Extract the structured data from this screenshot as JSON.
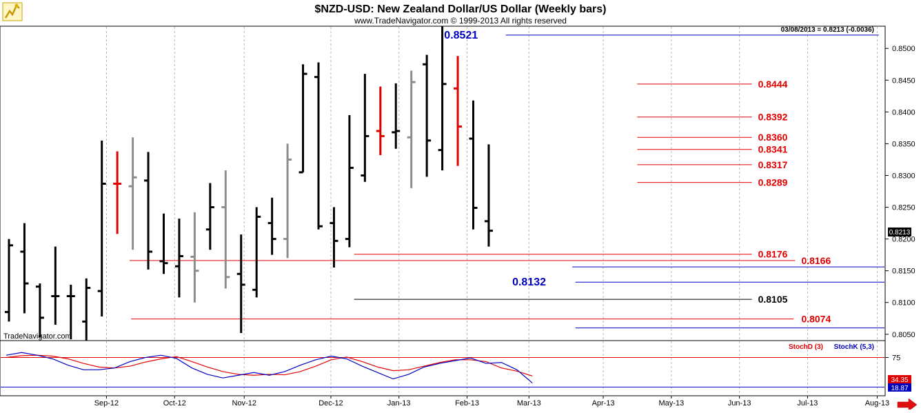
{
  "header": {
    "title": "$NZD-USD:  New Zealand Dollar/US Dollar  (Weekly bars)",
    "copyright": "www.TradeNavigator.com © 1999-2013 All rights reserved",
    "last_quote": "03/08/2013 = 0.8213 (-0.0036)",
    "watermark": "TradeNavigator.com",
    "current_price_tag": "0.8213"
  },
  "colors": {
    "background": "#ffffff",
    "bar_black": "#000000",
    "bar_gray": "#8c8c8c",
    "bar_red": "#e00000",
    "level_red": "#e00000",
    "level_blue": "#0000c0",
    "level_black": "#000000",
    "stoch_d": "#e00000",
    "stoch_k": "#0000c0",
    "grid": "#b8b8b8"
  },
  "chart_data": [
    {
      "type": "ohlc",
      "title": "$NZD-USD:  New Zealand Dollar/US Dollar  (Weekly bars)",
      "ylim": [
        0.804,
        0.8535
      ],
      "yticks": [
        "0.8500",
        "0.8450",
        "0.8400",
        "0.8350",
        "0.8300",
        "0.8250",
        "0.8200",
        "0.8150",
        "0.8100",
        "0.8050"
      ],
      "xticks": [
        {
          "label": "Sep-12",
          "bar": 6.3
        },
        {
          "label": "Oct-12",
          "bar": 10.7
        },
        {
          "label": "Nov-12",
          "bar": 15.2
        },
        {
          "label": "Dec-12",
          "bar": 20.8
        },
        {
          "label": "Jan-13",
          "bar": 25.2
        },
        {
          "label": "Feb-13",
          "bar": 29.6
        },
        {
          "label": "Mar-13",
          "bar": 33.6
        },
        {
          "label": "Apr-13",
          "bar": 38.4
        },
        {
          "label": "May-13",
          "bar": 42.8
        },
        {
          "label": "Jun-13",
          "bar": 47.2
        },
        {
          "label": "Jul-13",
          "bar": 51.6
        },
        {
          "label": "Aug-13",
          "bar": 56.1
        }
      ],
      "bars": [
        {
          "o": 0.8085,
          "h": 0.82,
          "l": 0.807,
          "c": 0.819,
          "color": "black"
        },
        {
          "o": 0.818,
          "h": 0.8225,
          "l": 0.8083,
          "c": 0.813,
          "color": "black"
        },
        {
          "o": 0.8125,
          "h": 0.813,
          "l": 0.8045,
          "c": 0.8076,
          "color": "black"
        },
        {
          "o": 0.811,
          "h": 0.8188,
          "l": 0.8065,
          "c": 0.811,
          "color": "black"
        },
        {
          "o": 0.811,
          "h": 0.8128,
          "l": 0.8042,
          "c": 0.811,
          "color": "black"
        },
        {
          "o": 0.807,
          "h": 0.8138,
          "l": 0.804,
          "c": 0.8123,
          "color": "black"
        },
        {
          "o": 0.8118,
          "h": 0.8355,
          "l": 0.8078,
          "c": 0.8287,
          "color": "black"
        },
        {
          "o": 0.8287,
          "h": 0.8338,
          "l": 0.8208,
          "c": 0.8287,
          "color": "red"
        },
        {
          "o": 0.8283,
          "h": 0.836,
          "l": 0.8183,
          "c": 0.8297,
          "color": "gray"
        },
        {
          "o": 0.8292,
          "h": 0.8337,
          "l": 0.8152,
          "c": 0.818,
          "color": "black"
        },
        {
          "o": 0.8165,
          "h": 0.824,
          "l": 0.8145,
          "c": 0.8162,
          "color": "black"
        },
        {
          "o": 0.8157,
          "h": 0.8232,
          "l": 0.8108,
          "c": 0.8173,
          "color": "black"
        },
        {
          "o": 0.8172,
          "h": 0.8242,
          "l": 0.81,
          "c": 0.815,
          "color": "gray"
        },
        {
          "o": 0.8215,
          "h": 0.8288,
          "l": 0.8183,
          "c": 0.825,
          "color": "black"
        },
        {
          "o": 0.825,
          "h": 0.8308,
          "l": 0.8122,
          "c": 0.814,
          "color": "gray"
        },
        {
          "o": 0.8145,
          "h": 0.8207,
          "l": 0.8052,
          "c": 0.8128,
          "color": "black"
        },
        {
          "o": 0.812,
          "h": 0.825,
          "l": 0.8108,
          "c": 0.8235,
          "color": "black"
        },
        {
          "o": 0.8225,
          "h": 0.8265,
          "l": 0.8175,
          "c": 0.82,
          "color": "black"
        },
        {
          "o": 0.82,
          "h": 0.835,
          "l": 0.817,
          "c": 0.8325,
          "color": "gray"
        },
        {
          "o": 0.8305,
          "h": 0.8475,
          "l": 0.8305,
          "c": 0.846,
          "color": "black"
        },
        {
          "o": 0.8455,
          "h": 0.8478,
          "l": 0.8215,
          "c": 0.822,
          "color": "black"
        },
        {
          "o": 0.8225,
          "h": 0.825,
          "l": 0.8155,
          "c": 0.8197,
          "color": "black"
        },
        {
          "o": 0.82,
          "h": 0.8395,
          "l": 0.8187,
          "c": 0.8312,
          "color": "black"
        },
        {
          "o": 0.83,
          "h": 0.846,
          "l": 0.829,
          "c": 0.8362,
          "color": "black"
        },
        {
          "o": 0.837,
          "h": 0.844,
          "l": 0.8332,
          "c": 0.8362,
          "color": "red"
        },
        {
          "o": 0.8368,
          "h": 0.8445,
          "l": 0.8342,
          "c": 0.837,
          "color": "black"
        },
        {
          "o": 0.836,
          "h": 0.8465,
          "l": 0.828,
          "c": 0.8447,
          "color": "gray"
        },
        {
          "o": 0.8475,
          "h": 0.849,
          "l": 0.8298,
          "c": 0.8355,
          "color": "black"
        },
        {
          "o": 0.834,
          "h": 0.8535,
          "l": 0.8308,
          "c": 0.8444,
          "color": "black"
        },
        {
          "o": 0.8437,
          "h": 0.8488,
          "l": 0.8315,
          "c": 0.8377,
          "color": "red"
        },
        {
          "o": 0.8358,
          "h": 0.8418,
          "l": 0.8215,
          "c": 0.8249,
          "color": "black"
        },
        {
          "o": 0.8228,
          "h": 0.8349,
          "l": 0.8188,
          "c": 0.8213,
          "color": "black"
        }
      ],
      "levels": [
        {
          "value": 0.8521,
          "label": "0.8521",
          "color": "blue",
          "from_bar": 32.1,
          "to_bar": 56.2,
          "label_side": "left",
          "label_bar": 30.3
        },
        {
          "value": 0.8444,
          "label": "0.8444",
          "color": "red",
          "from_bar": 40.6,
          "to_bar": 48.0,
          "label_side": "right",
          "label_bar": 48.4
        },
        {
          "value": 0.8392,
          "label": "0.8392",
          "color": "red",
          "from_bar": 40.6,
          "to_bar": 48.0,
          "label_side": "right",
          "label_bar": 48.4
        },
        {
          "value": 0.836,
          "label": "0.8360",
          "color": "red",
          "from_bar": 40.6,
          "to_bar": 48.0,
          "label_side": "right",
          "label_bar": 48.4
        },
        {
          "value": 0.8341,
          "label": "0.8341",
          "color": "red",
          "from_bar": 40.6,
          "to_bar": 48.0,
          "label_side": "right",
          "label_bar": 48.4
        },
        {
          "value": 0.8317,
          "label": "0.8317",
          "color": "red",
          "from_bar": 40.6,
          "to_bar": 48.0,
          "label_side": "right",
          "label_bar": 48.4
        },
        {
          "value": 0.8289,
          "label": "0.8289",
          "color": "red",
          "from_bar": 40.6,
          "to_bar": 48.0,
          "label_side": "right",
          "label_bar": 48.4
        },
        {
          "value": 0.8176,
          "label": "0.8176",
          "color": "red",
          "from_bar": 22.3,
          "to_bar": 48.0,
          "label_side": "right",
          "label_bar": 48.4
        },
        {
          "value": 0.8166,
          "label": "0.8166",
          "color": "red",
          "from_bar": 7.8,
          "to_bar": 50.8,
          "label_side": "right",
          "label_bar": 51.2
        },
        {
          "value": 0.8156,
          "label": "0.8156",
          "color": "blue",
          "from_bar": 36.4,
          "to_bar": 72.2,
          "label_side": "right",
          "label_bar": 72.6
        },
        {
          "value": 0.8132,
          "label": "0.8132",
          "color": "blue",
          "from_bar": 36.6,
          "to_bar": 72.2,
          "label_side": "left",
          "label_bar": 34.7
        },
        {
          "value": 0.8105,
          "label": "0.8105",
          "color": "black",
          "from_bar": 22.3,
          "to_bar": 48.0,
          "label_side": "right",
          "label_bar": 48.4
        },
        {
          "value": 0.8074,
          "label": "0.8074",
          "color": "red",
          "from_bar": 7.9,
          "to_bar": 50.7,
          "label_side": "right",
          "label_bar": 51.2
        },
        {
          "value": 0.806,
          "label": "0.8060",
          "color": "blue",
          "from_bar": 36.6,
          "to_bar": 72.2,
          "label_side": "right",
          "label_bar": 72.6
        }
      ]
    },
    {
      "type": "line",
      "ylim": [
        0,
        100
      ],
      "yticks": [
        "75"
      ],
      "legend": [
        {
          "name": "StochD (3)",
          "color": "red"
        },
        {
          "name": "StochK (5,3)",
          "color": "blue"
        }
      ],
      "last_values": {
        "stoch_d": "34.35",
        "stoch_k": "18.87"
      },
      "series": [
        {
          "name": "StochD (3)",
          "color": "red",
          "values": [
            75,
            79,
            80,
            78,
            72,
            62,
            54,
            52,
            56,
            65,
            72,
            77,
            66,
            54,
            44,
            38,
            36,
            38,
            37,
            44,
            56,
            70,
            76,
            66,
            54,
            46,
            48,
            56,
            64,
            70,
            70,
            66,
            52,
            45,
            34.35
          ]
        },
        {
          "name": "StochK (5,3)",
          "color": "blue",
          "values": [
            80,
            86,
            80,
            72,
            58,
            48,
            48,
            52,
            66,
            75,
            80,
            73,
            52,
            38,
            30,
            36,
            42,
            36,
            44,
            58,
            70,
            78,
            72,
            56,
            42,
            28,
            38,
            54,
            62,
            68,
            74,
            62,
            64,
            48,
            18.87
          ]
        }
      ],
      "reference_lines": [
        75,
        10
      ]
    }
  ]
}
